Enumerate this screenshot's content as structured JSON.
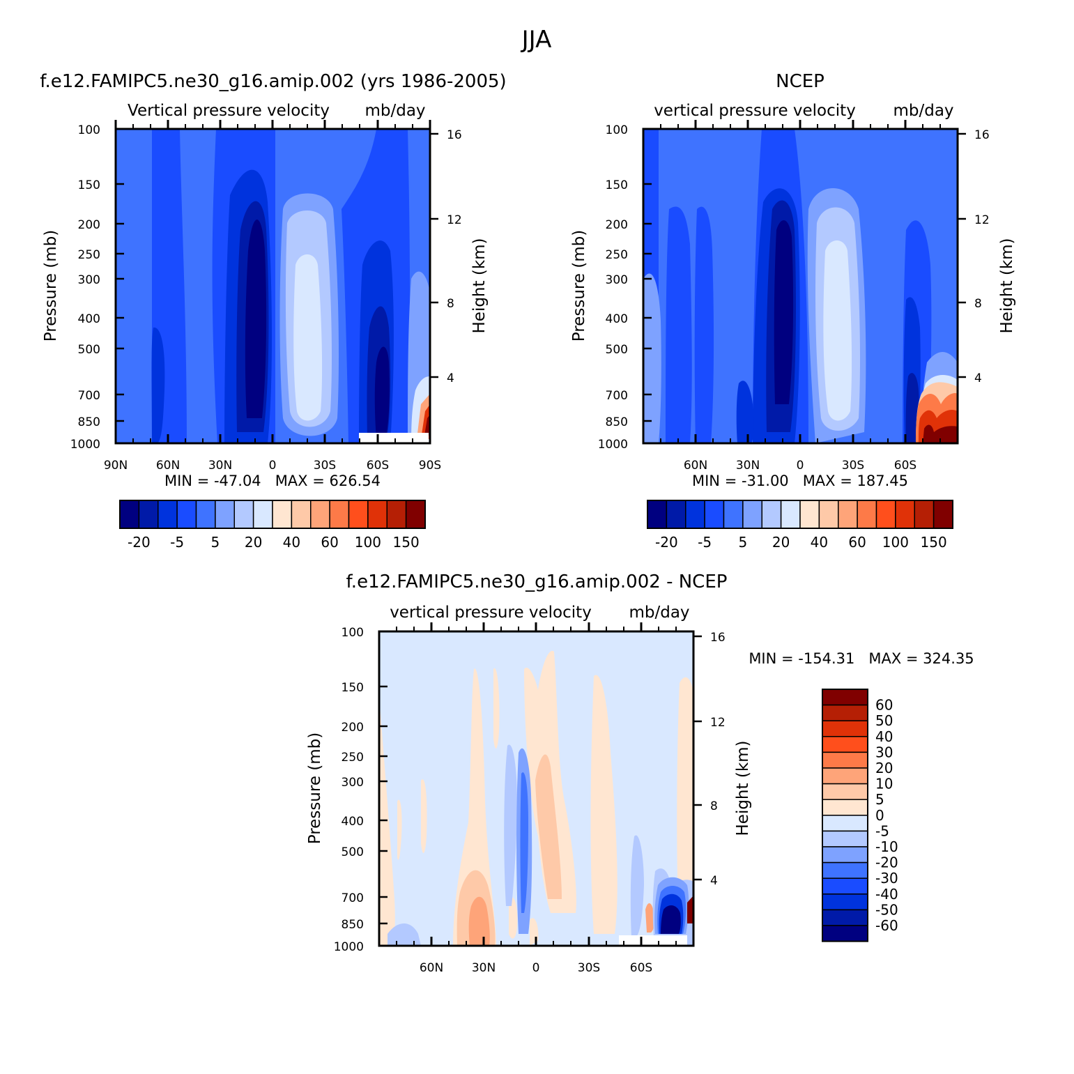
{
  "figure": {
    "title": "JJA"
  },
  "palette": {
    "blues": [
      "#000080",
      "#001aa8",
      "#0033dd",
      "#1a4cff",
      "#3f73ff",
      "#7ea2ff",
      "#b3c9ff",
      "#d9e8ff"
    ],
    "reds": [
      "#ffe6d1",
      "#fec9a8",
      "#fea479",
      "#fd7a48",
      "#ff4f1c",
      "#e03208",
      "#b51f05",
      "#800000"
    ]
  },
  "panels": [
    {
      "id": "model",
      "title": "f.e12.FAMIPC5.ne30_g16.amip.002 (yrs 1986-2005)",
      "subtitle_left": "Vertical pressure velocity",
      "subtitle_right": "mb/day",
      "ylabel": "Pressure (mb)",
      "ylabel_right": "Height (km)",
      "stats": "MIN = -47.04   MAX = 626.54",
      "colorbar_labels": [
        "-20",
        "-5",
        "5",
        "20",
        "40",
        "60",
        "100",
        "150"
      ]
    },
    {
      "id": "obs",
      "title": "NCEP",
      "subtitle_left": "vertical pressure velocity",
      "subtitle_right": "mb/day",
      "ylabel": "Pressure (mb)",
      "ylabel_right": "Height (km)",
      "stats": "MIN = -31.00   MAX = 187.45",
      "colorbar_labels": [
        "-20",
        "-5",
        "5",
        "20",
        "40",
        "60",
        "100",
        "150"
      ]
    },
    {
      "id": "diff",
      "title": "f.e12.FAMIPC5.ne30_g16.amip.002 - NCEP",
      "subtitle_left": "vertical pressure velocity",
      "subtitle_right": "mb/day",
      "ylabel": "Pressure (mb)",
      "ylabel_right": "Height (km)",
      "stats": "MIN = -154.31   MAX = 324.35",
      "colorbar_labels": [
        "60",
        "50",
        "40",
        "30",
        "20",
        "10",
        "5",
        "0",
        "-5",
        "-10",
        "-20",
        "-30",
        "-40",
        "-50",
        "-60"
      ]
    }
  ],
  "chart_data": [
    {
      "type": "heatmap",
      "title": "f.e12.FAMIPC5.ne30_g16.amip.002 (yrs 1986-2005)",
      "units": "mb/day",
      "x_ticks": [
        "90N",
        "60N",
        "30N",
        "0",
        "30S",
        "60S",
        "90S"
      ],
      "x_range": [
        90,
        -90
      ],
      "y_ticks": [
        100,
        150,
        200,
        250,
        300,
        400,
        500,
        700,
        850,
        1000
      ],
      "y_range": [
        100,
        1000
      ],
      "y_scale": "log",
      "y2_ticks": [
        4,
        8,
        12,
        16
      ],
      "min": -47.04,
      "max": 626.54,
      "levels": [
        -20,
        -15,
        -10,
        -5,
        0,
        5,
        10,
        20,
        30,
        40,
        50,
        60,
        80,
        100,
        120,
        150
      ]
    },
    {
      "type": "heatmap",
      "title": "NCEP",
      "units": "mb/day",
      "x_ticks": [
        "60N",
        "30N",
        "0",
        "30S",
        "60S"
      ],
      "x_range": [
        90,
        -90
      ],
      "y_ticks": [
        100,
        150,
        200,
        250,
        300,
        400,
        500,
        700,
        850,
        1000
      ],
      "y_range": [
        100,
        1000
      ],
      "y_scale": "log",
      "y2_ticks": [
        4,
        8,
        12,
        16
      ],
      "min": -31.0,
      "max": 187.45,
      "levels": [
        -20,
        -15,
        -10,
        -5,
        0,
        5,
        10,
        20,
        30,
        40,
        50,
        60,
        80,
        100,
        120,
        150
      ]
    },
    {
      "type": "heatmap",
      "title": "f.e12.FAMIPC5.ne30_g16.amip.002 - NCEP",
      "units": "mb/day",
      "x_ticks": [
        "60N",
        "30N",
        "0",
        "30S",
        "60S"
      ],
      "x_range": [
        90,
        -90
      ],
      "y_ticks": [
        100,
        150,
        200,
        250,
        300,
        400,
        500,
        700,
        850,
        1000
      ],
      "y_range": [
        100,
        1000
      ],
      "y_scale": "log",
      "y2_ticks": [
        4,
        8,
        12,
        16
      ],
      "min": -154.31,
      "max": 324.35,
      "levels": [
        -60,
        -50,
        -40,
        -30,
        -20,
        -10,
        -5,
        0,
        5,
        10,
        20,
        30,
        40,
        50,
        60
      ]
    }
  ]
}
